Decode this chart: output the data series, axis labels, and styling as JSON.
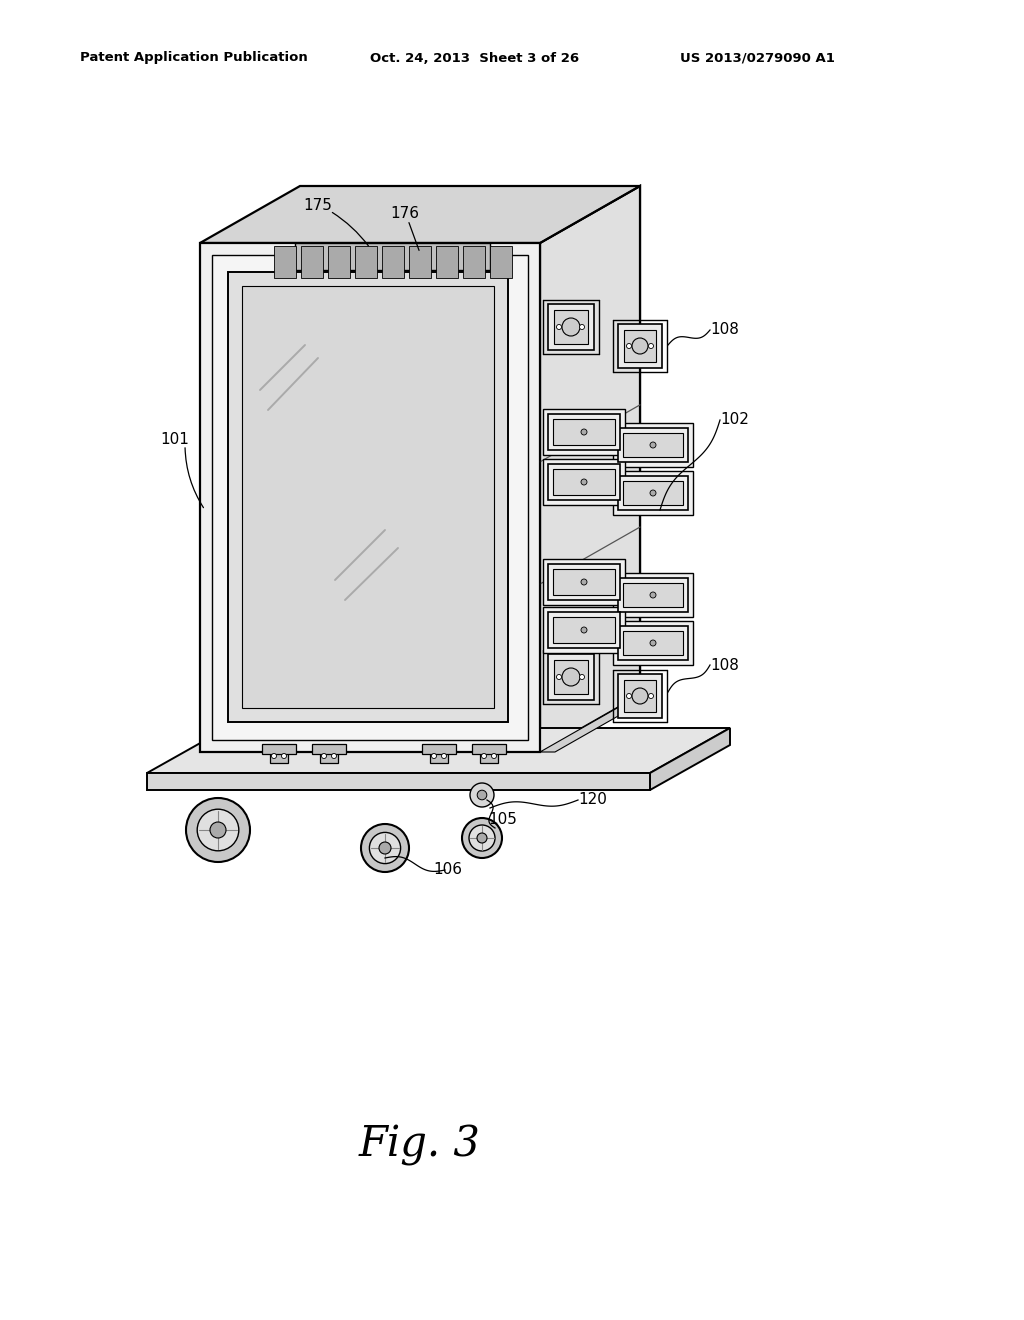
{
  "bg_color": "#ffffff",
  "header_left": "Patent Application Publication",
  "header_center": "Oct. 24, 2013  Sheet 3 of 26",
  "header_right": "US 2013/0279090 A1",
  "figure_label": "Fig. 3",
  "lw_main": 1.6,
  "lw_thin": 0.9,
  "face_front": "#f0f0f0",
  "face_top": "#d5d5d5",
  "face_right_inner": "#e8e8e8",
  "face_right_outer": "#e0e0e0",
  "face_screen": "#e4e4e4",
  "face_screen_inner": "#d8d8d8",
  "face_platform_top": "#e5e5e5",
  "face_platform_front": "#d8d8d8",
  "face_platform_right": "#cccccc",
  "connector_face": "#eeeeee",
  "connector_inner": "#d8d8d8",
  "sq_conn_face": "#ebebeb",
  "sq_conn_inner": "#d5d5d5",
  "vent_face": "#c0c0c0",
  "vent_slot": "#888888"
}
